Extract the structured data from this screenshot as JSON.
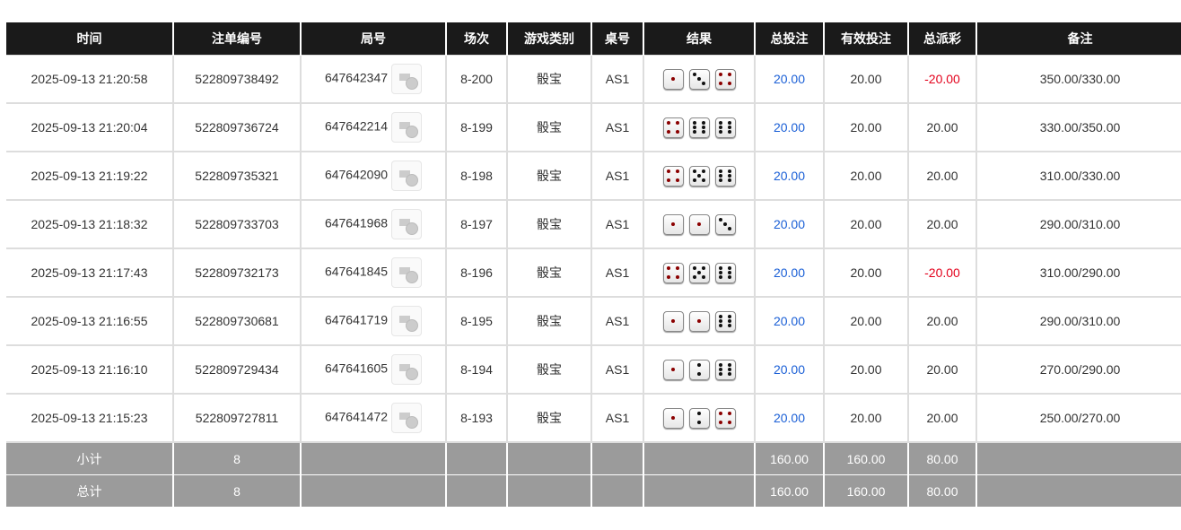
{
  "headers": [
    "时间",
    "注单编号",
    "局号",
    "场次",
    "游戏类别",
    "桌号",
    "结果",
    "总投注",
    "有效投注",
    "总派彩",
    "备注"
  ],
  "rows": [
    {
      "time": "2025-09-13 21:20:58",
      "bet_id": "522809738492",
      "round": "647642347",
      "session": "8-200",
      "game": "骰宝",
      "table": "AS1",
      "dice": [
        1,
        3,
        4
      ],
      "total_bet": "20.00",
      "valid_bet": "20.00",
      "payout": "-20.00",
      "note": "350.00/330.00"
    },
    {
      "time": "2025-09-13 21:20:04",
      "bet_id": "522809736724",
      "round": "647642214",
      "session": "8-199",
      "game": "骰宝",
      "table": "AS1",
      "dice": [
        4,
        6,
        6
      ],
      "total_bet": "20.00",
      "valid_bet": "20.00",
      "payout": "20.00",
      "note": "330.00/350.00"
    },
    {
      "time": "2025-09-13 21:19:22",
      "bet_id": "522809735321",
      "round": "647642090",
      "session": "8-198",
      "game": "骰宝",
      "table": "AS1",
      "dice": [
        4,
        5,
        6
      ],
      "total_bet": "20.00",
      "valid_bet": "20.00",
      "payout": "20.00",
      "note": "310.00/330.00"
    },
    {
      "time": "2025-09-13 21:18:32",
      "bet_id": "522809733703",
      "round": "647641968",
      "session": "8-197",
      "game": "骰宝",
      "table": "AS1",
      "dice": [
        1,
        1,
        3
      ],
      "total_bet": "20.00",
      "valid_bet": "20.00",
      "payout": "20.00",
      "note": "290.00/310.00"
    },
    {
      "time": "2025-09-13 21:17:43",
      "bet_id": "522809732173",
      "round": "647641845",
      "session": "8-196",
      "game": "骰宝",
      "table": "AS1",
      "dice": [
        4,
        5,
        6
      ],
      "total_bet": "20.00",
      "valid_bet": "20.00",
      "payout": "-20.00",
      "note": "310.00/290.00"
    },
    {
      "time": "2025-09-13 21:16:55",
      "bet_id": "522809730681",
      "round": "647641719",
      "session": "8-195",
      "game": "骰宝",
      "table": "AS1",
      "dice": [
        1,
        1,
        6
      ],
      "total_bet": "20.00",
      "valid_bet": "20.00",
      "payout": "20.00",
      "note": "290.00/310.00"
    },
    {
      "time": "2025-09-13 21:16:10",
      "bet_id": "522809729434",
      "round": "647641605",
      "session": "8-194",
      "game": "骰宝",
      "table": "AS1",
      "dice": [
        1,
        2,
        6
      ],
      "total_bet": "20.00",
      "valid_bet": "20.00",
      "payout": "20.00",
      "note": "270.00/290.00"
    },
    {
      "time": "2025-09-13 21:15:23",
      "bet_id": "522809727811",
      "round": "647641472",
      "session": "8-193",
      "game": "骰宝",
      "table": "AS1",
      "dice": [
        1,
        2,
        4
      ],
      "total_bet": "20.00",
      "valid_bet": "20.00",
      "payout": "20.00",
      "note": "250.00/270.00"
    }
  ],
  "subtotal": {
    "label": "小计",
    "count": "8",
    "total_bet": "160.00",
    "valid_bet": "160.00",
    "payout": "80.00"
  },
  "total": {
    "label": "总计",
    "count": "8",
    "total_bet": "160.00",
    "valid_bet": "160.00",
    "payout": "80.00"
  },
  "colors": {
    "header_bg": "#1a1a1a",
    "footer_bg": "#9b9b9b",
    "total_bet": "#1a5fd6",
    "negative": "#e3001b",
    "pip_red": "#8b0000",
    "pip_black": "#111111"
  },
  "icons": {
    "round": "video-replay-icon"
  }
}
